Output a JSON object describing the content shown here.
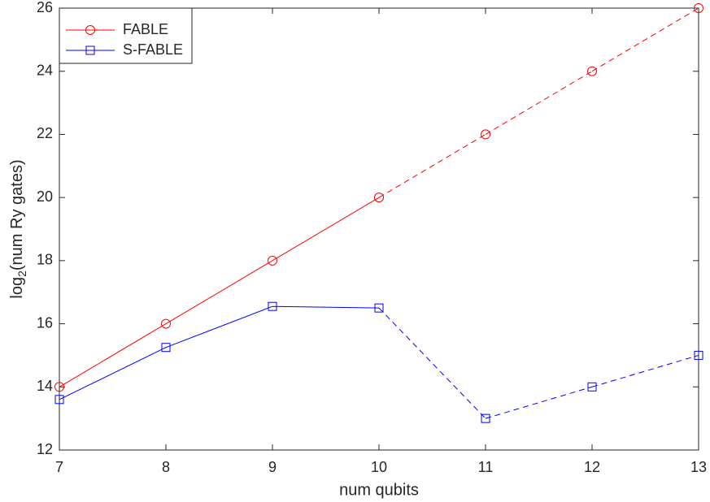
{
  "chart_data": {
    "type": "line",
    "xlabel": "num qubits",
    "ylabel": {
      "base": "log",
      "sub": "2",
      "rest": "(num Ry gates)"
    },
    "x": [
      7,
      8,
      9,
      10,
      11,
      12,
      13
    ],
    "xlim": [
      7,
      13
    ],
    "xticks": [
      7,
      8,
      9,
      10,
      11,
      12,
      13
    ],
    "ylim": [
      12,
      26
    ],
    "yticks": [
      12,
      14,
      16,
      18,
      20,
      22,
      24,
      26
    ],
    "legend": "upper left",
    "box": true,
    "series": [
      {
        "name": "FABLE",
        "color": "#ff0000",
        "marker": "circle",
        "dashed_from": 10,
        "values": [
          14,
          16,
          18,
          20,
          22,
          24,
          26
        ]
      },
      {
        "name": "S-FABLE",
        "color": "#0000ff",
        "marker": "square",
        "dashed_from": 10,
        "values": [
          13.6,
          15.25,
          16.55,
          16.5,
          13,
          14,
          15
        ]
      }
    ]
  }
}
